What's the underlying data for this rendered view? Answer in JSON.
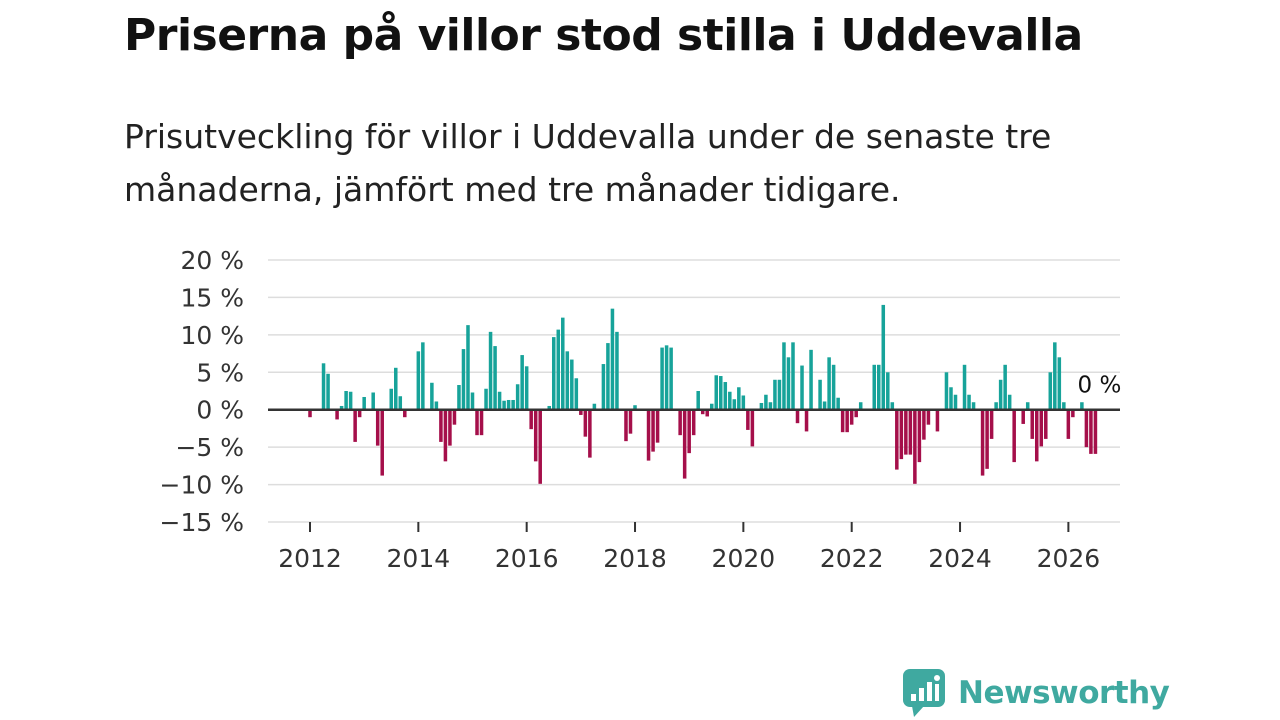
{
  "header": {
    "title": "Priserna på villor stod stilla i Uddevalla",
    "subtitle": "Prisutveckling för villor i Uddevalla under de senaste tre månaderna, jämfört med tre månader tidigare."
  },
  "brand": {
    "name": "Newsworthy",
    "icon": "newsworthy-logo-icon",
    "color": "#3fa9a0"
  },
  "chart_data": {
    "type": "bar",
    "title": "Priserna på villor stod stilla i Uddevalla",
    "subtitle": "Prisutveckling för villor i Uddevalla under de senaste tre månaderna, jämfört med tre månader tidigare.",
    "xlabel": "",
    "ylabel": "",
    "ylim": [
      -15,
      20
    ],
    "y_ticks": [
      20,
      15,
      10,
      5,
      0,
      -5,
      -10,
      -15
    ],
    "y_tick_labels": [
      "20 %",
      "15 %",
      "10 %",
      "5 %",
      "0 %",
      "−5 %",
      "−10 %",
      "−15 %"
    ],
    "x_ticks": [
      "2012",
      "2014",
      "2016",
      "2018",
      "2020",
      "2022",
      "2024",
      "2026"
    ],
    "x_start": 2012.0,
    "x_step": 0.08333,
    "grid": true,
    "colors": {
      "positive": "#17a39a",
      "negative": "#a50f4a",
      "grid": "#dddddd",
      "zero_line": "#333333"
    },
    "values": [
      -1.0,
      0,
      0,
      6.2,
      4.8,
      0,
      -1.3,
      0.5,
      2.5,
      2.4,
      -4.3,
      -1.0,
      1.7,
      0,
      2.3,
      -4.8,
      -8.8,
      0,
      2.8,
      5.6,
      1.8,
      -1.0,
      0,
      0,
      7.8,
      9.0,
      0,
      3.6,
      1.1,
      -4.3,
      -6.9,
      -4.8,
      -2.0,
      3.3,
      8.1,
      11.3,
      2.3,
      -3.4,
      -3.4,
      2.8,
      10.4,
      8.5,
      2.4,
      1.2,
      1.3,
      1.3,
      3.4,
      7.3,
      5.8,
      -2.6,
      -6.9,
      -9.9,
      0,
      0.5,
      9.7,
      10.7,
      12.3,
      7.8,
      6.7,
      4.2,
      -0.7,
      -3.6,
      -6.4,
      0.8,
      0,
      6.1,
      8.9,
      13.5,
      10.4,
      0,
      -4.2,
      -3.2,
      0.6,
      0,
      0,
      -6.8,
      -5.6,
      -4.4,
      8.3,
      8.6,
      8.3,
      0,
      -3.4,
      -9.2,
      -5.8,
      -3.4,
      2.5,
      -0.6,
      -0.9,
      0.8,
      4.6,
      4.5,
      3.7,
      2.4,
      1.4,
      3.0,
      1.9,
      -2.7,
      -4.9,
      0,
      0.9,
      2.0,
      1.0,
      4.0,
      4.0,
      9.0,
      7.0,
      9.0,
      -1.8,
      5.9,
      -2.9,
      8.0,
      0,
      4.0,
      1.1,
      7.0,
      6.0,
      1.6,
      -3.0,
      -3.0,
      -2.0,
      -1.0,
      1.0,
      0,
      0,
      6.0,
      6.0,
      14.0,
      5.0,
      1.0,
      -8.0,
      -6.6,
      -6.0,
      -6.0,
      -9.9,
      -7.0,
      -4.0,
      -2.0,
      0,
      -2.9,
      0,
      5.0,
      3.0,
      2.0,
      0,
      6.0,
      2.0,
      1.0,
      0,
      -8.8,
      -7.9,
      -3.9,
      1.0,
      4.0,
      6.0,
      2.0,
      -7.0,
      0,
      -1.9,
      1.0,
      -3.9,
      -6.9,
      -4.9,
      -3.9,
      5.0,
      9.0,
      7.0,
      1.0,
      -3.9,
      -1.0,
      0,
      1.0,
      -5.0,
      -5.9,
      -5.9
    ],
    "annotation": {
      "label": "0 %",
      "value": 0
    }
  }
}
